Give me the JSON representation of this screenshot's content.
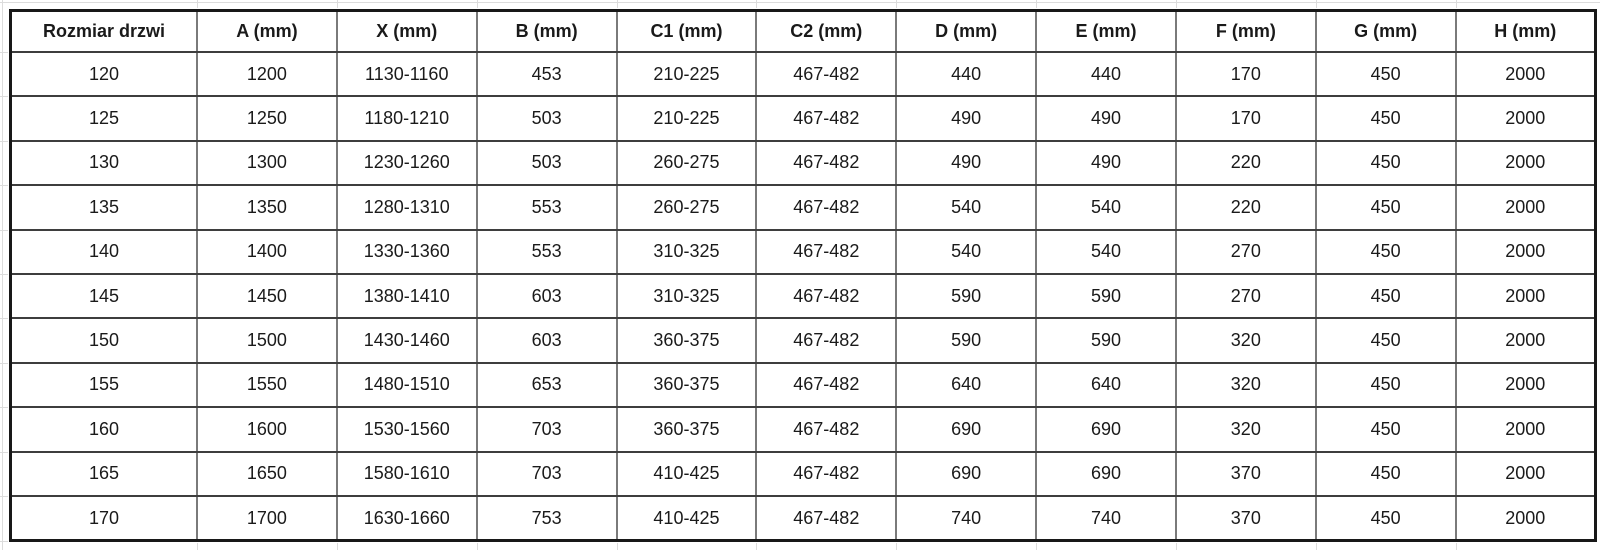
{
  "chart_data": {
    "type": "table",
    "title": "",
    "columns": [
      "Rozmiar drzwi",
      "A (mm)",
      "X (mm)",
      "B (mm)",
      "C1 (mm)",
      "C2 (mm)",
      "D (mm)",
      "E (mm)",
      "F (mm)",
      "G (mm)",
      "H (mm)"
    ],
    "rows": [
      [
        "120",
        "1200",
        "1130-1160",
        "453",
        "210-225",
        "467-482",
        "440",
        "440",
        "170",
        "450",
        "2000"
      ],
      [
        "125",
        "1250",
        "1180-1210",
        "503",
        "210-225",
        "467-482",
        "490",
        "490",
        "170",
        "450",
        "2000"
      ],
      [
        "130",
        "1300",
        "1230-1260",
        "503",
        "260-275",
        "467-482",
        "490",
        "490",
        "220",
        "450",
        "2000"
      ],
      [
        "135",
        "1350",
        "1280-1310",
        "553",
        "260-275",
        "467-482",
        "540",
        "540",
        "220",
        "450",
        "2000"
      ],
      [
        "140",
        "1400",
        "1330-1360",
        "553",
        "310-325",
        "467-482",
        "540",
        "540",
        "270",
        "450",
        "2000"
      ],
      [
        "145",
        "1450",
        "1380-1410",
        "603",
        "310-325",
        "467-482",
        "590",
        "590",
        "270",
        "450",
        "2000"
      ],
      [
        "150",
        "1500",
        "1430-1460",
        "603",
        "360-375",
        "467-482",
        "590",
        "590",
        "320",
        "450",
        "2000"
      ],
      [
        "155",
        "1550",
        "1480-1510",
        "653",
        "360-375",
        "467-482",
        "640",
        "640",
        "320",
        "450",
        "2000"
      ],
      [
        "160",
        "1600",
        "1530-1560",
        "703",
        "360-375",
        "467-482",
        "690",
        "690",
        "320",
        "450",
        "2000"
      ],
      [
        "165",
        "1650",
        "1580-1610",
        "703",
        "410-425",
        "467-482",
        "690",
        "690",
        "370",
        "450",
        "2000"
      ],
      [
        "170",
        "1700",
        "1630-1660",
        "753",
        "410-425",
        "467-482",
        "740",
        "740",
        "370",
        "450",
        "2000"
      ]
    ],
    "layout_hints": {
      "header_bold": true,
      "cell_alignment": "center",
      "grid": "full-borders",
      "outer_border_color": "#181818",
      "row_border_color": "#3e3e3e",
      "column_border_color": "#7a7a7a",
      "background_color": "#ffffff",
      "text_color": "#1a1a1a"
    }
  }
}
